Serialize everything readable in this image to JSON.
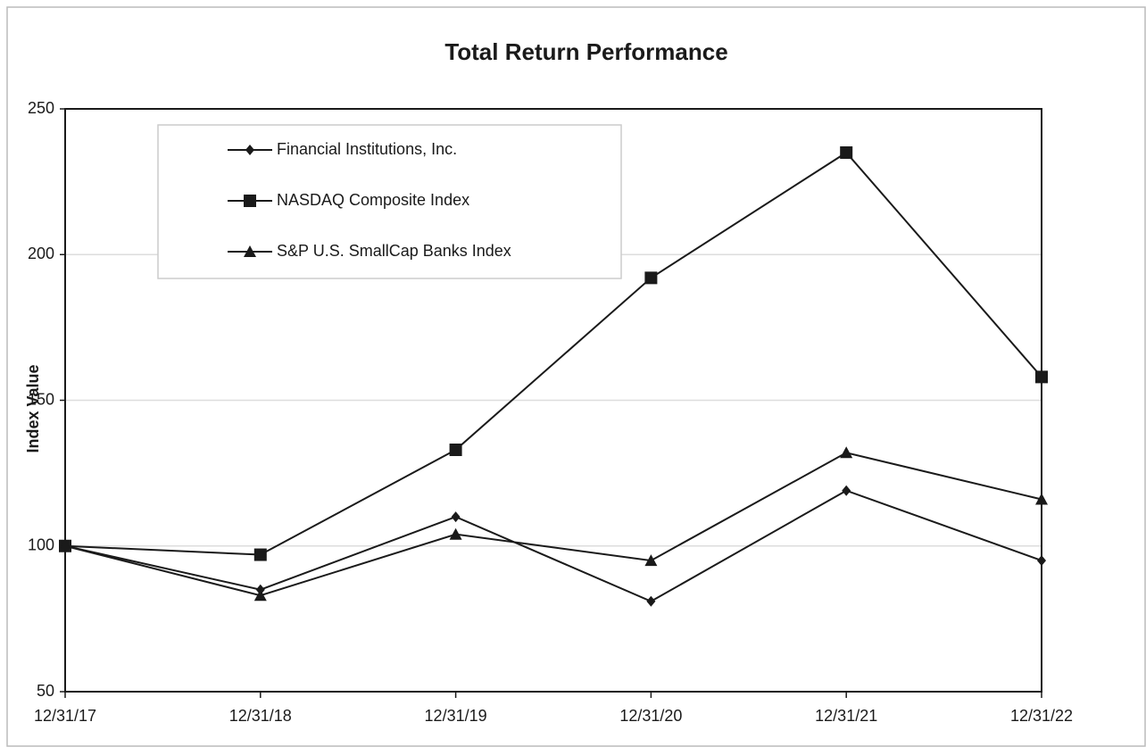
{
  "chart_data": {
    "type": "line",
    "title": "Total Return Performance",
    "y_label": "Index Value",
    "categories": [
      "12/31/17",
      "12/31/18",
      "12/31/19",
      "12/31/20",
      "12/31/21",
      "12/31/22"
    ],
    "series": [
      {
        "name": "Financial Institutions, Inc.",
        "color": "#1a1a1a",
        "marker": "diamond",
        "values": [
          100,
          85,
          110,
          81,
          119,
          95
        ]
      },
      {
        "name": "NASDAQ Composite Index",
        "color": "#1a1a1a",
        "marker": "square",
        "values": [
          100,
          97,
          133,
          192,
          235,
          158
        ]
      },
      {
        "name": "S&P U.S. SmallCap Banks Index",
        "color": "#1a1a1a",
        "marker": "triangle",
        "values": [
          100,
          83,
          104,
          95,
          132,
          116
        ]
      }
    ],
    "ylim": [
      50,
      250
    ],
    "yticks": [
      50,
      100,
      150,
      200,
      250
    ],
    "grid": true,
    "legend": "top-left"
  }
}
